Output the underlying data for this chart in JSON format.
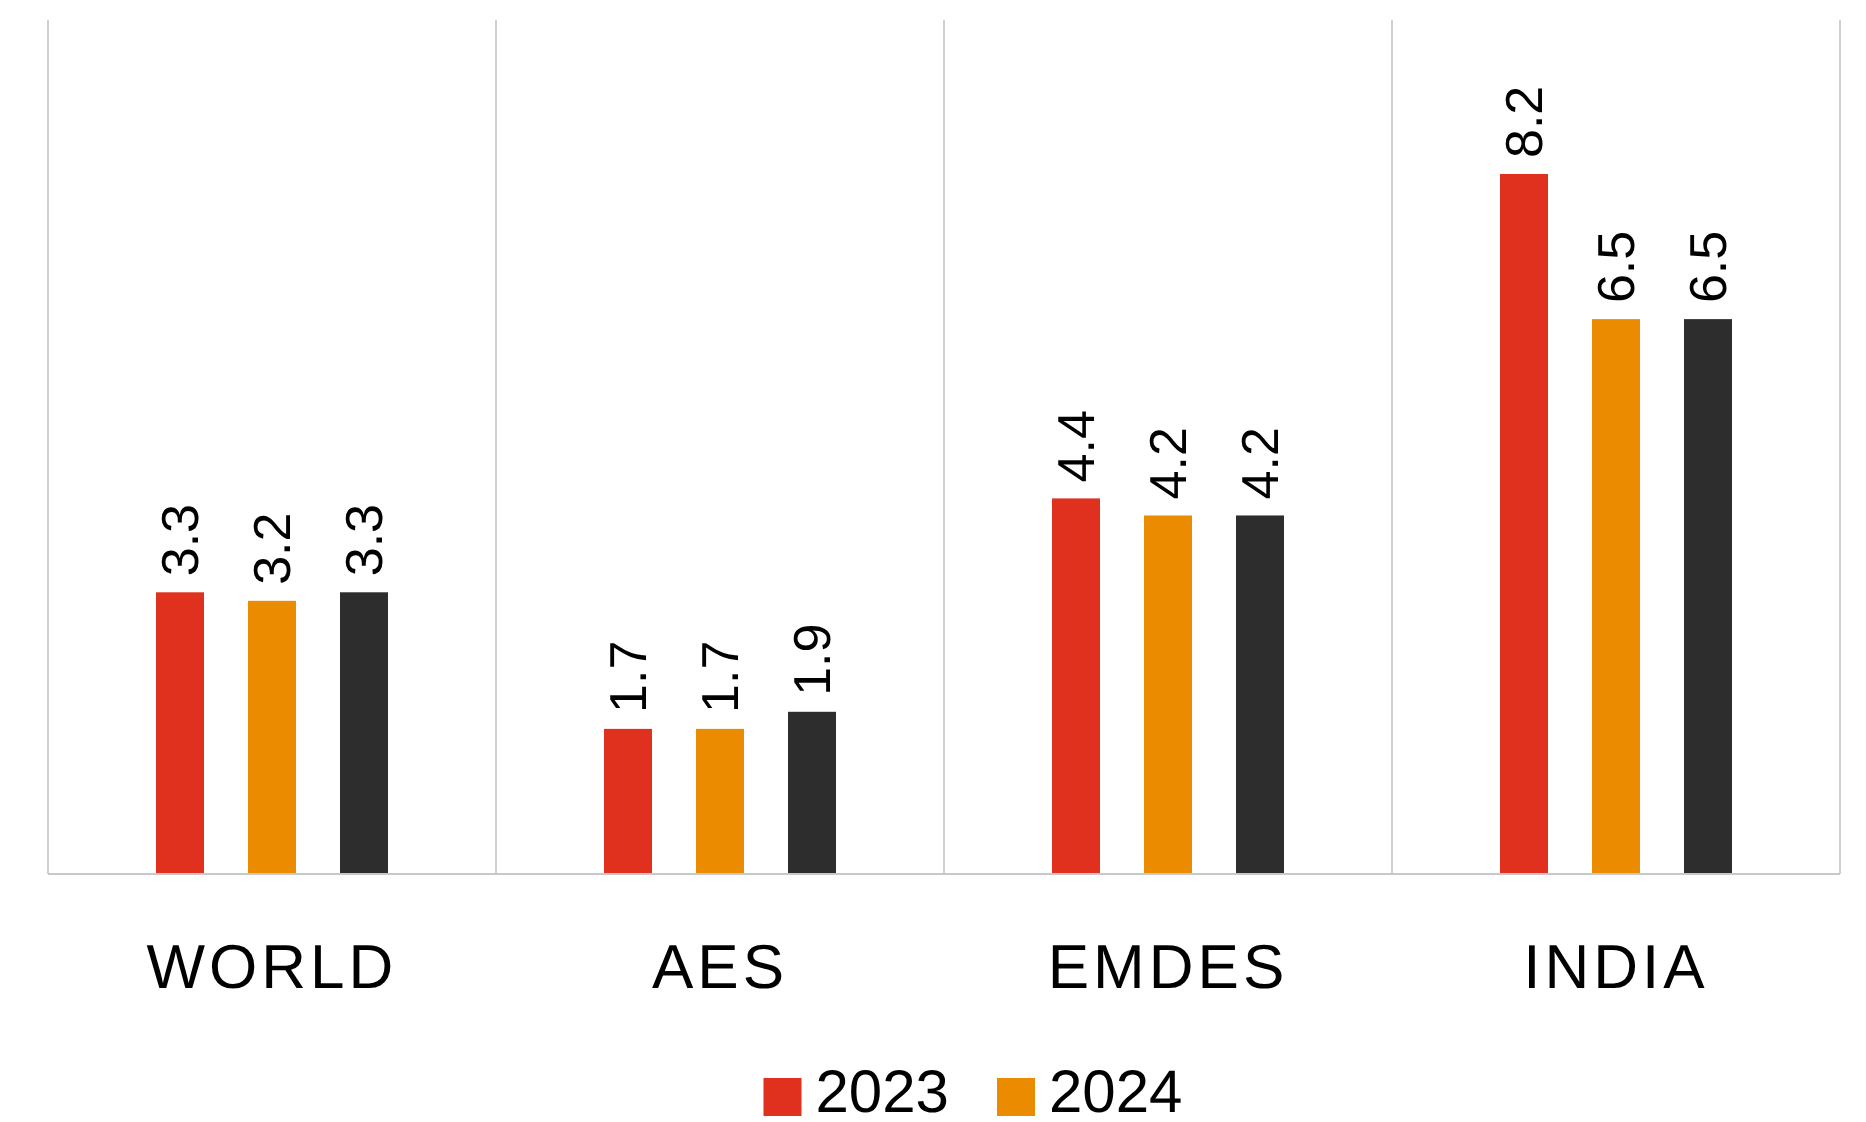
{
  "chart_data": {
    "type": "bar",
    "categories": [
      "WORLD",
      "AES",
      "EMDES",
      "INDIA"
    ],
    "series": [
      {
        "name": "2023",
        "color": "#e0301e",
        "values": [
          3.3,
          1.7,
          4.4,
          8.2
        ]
      },
      {
        "name": "2024",
        "color": "#eb8c00",
        "values": [
          3.2,
          1.7,
          4.2,
          6.5
        ]
      },
      {
        "color": "#2d2d2d",
        "values": [
          3.3,
          1.9,
          4.2,
          6.5
        ]
      }
    ],
    "data_labels": true,
    "grid": "x",
    "legend": "bottom"
  }
}
